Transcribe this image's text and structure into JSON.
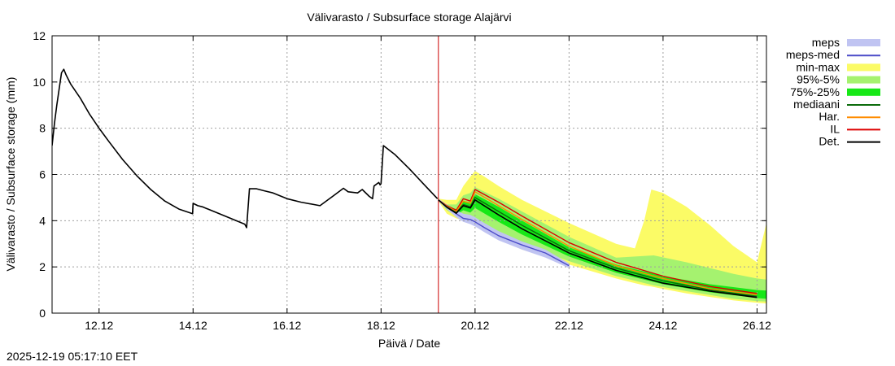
{
  "chart_data": {
    "type": "line",
    "title": "Välivarasto / Subsurface storage  Alajärvi",
    "xlabel": "Päivä / Date",
    "ylabel": "Välivarasto / Subsurface storage (mm)",
    "xlim": [
      0,
      15.2
    ],
    "ylim": [
      0,
      12
    ],
    "x_unit": "days since 10.12 22:00",
    "yticks": [
      0,
      2,
      4,
      6,
      8,
      10,
      12
    ],
    "xticks": [
      {
        "x": 1,
        "label": "12.12"
      },
      {
        "x": 3,
        "label": "14.12"
      },
      {
        "x": 5,
        "label": "16.12"
      },
      {
        "x": 7,
        "label": "18.12"
      },
      {
        "x": 9,
        "label": "20.12"
      },
      {
        "x": 11,
        "label": "22.12"
      },
      {
        "x": 13,
        "label": "24.12"
      },
      {
        "x": 15,
        "label": "26.12"
      }
    ],
    "grid": true,
    "forecast_start_x": 8.22,
    "legend_position": "right",
    "legend": [
      {
        "label": "meps",
        "kind": "band",
        "color": "#c0c4f2"
      },
      {
        "label": "meps-med",
        "kind": "line",
        "color": "#4b4bc8"
      },
      {
        "label": "min-max",
        "kind": "band",
        "color": "#fbfb66"
      },
      {
        "label": "95%-5%",
        "kind": "band",
        "color": "#a5f26f"
      },
      {
        "label": "75%-25%",
        "kind": "band",
        "color": "#17e817"
      },
      {
        "label": "mediaani",
        "kind": "line",
        "color": "#0b6b0b"
      },
      {
        "label": "Har.",
        "kind": "line",
        "color": "#ff8c00"
      },
      {
        "label": "IL",
        "kind": "line",
        "color": "#dd0000"
      },
      {
        "label": "Det.",
        "kind": "line",
        "color": "#000000"
      }
    ],
    "series": [
      {
        "name": "history",
        "color": "#000000",
        "x": [
          0,
          0.05,
          0.1,
          0.15,
          0.2,
          0.25,
          0.3,
          0.4,
          0.6,
          0.8,
          1.0,
          1.2,
          1.5,
          1.8,
          2.1,
          2.4,
          2.7,
          2.99,
          3.0,
          3.1,
          3.2,
          3.5,
          3.8,
          4.1,
          4.14,
          4.2,
          4.35,
          4.5,
          4.7,
          5.0,
          5.3,
          5.7,
          6.0,
          6.2,
          6.3,
          6.5,
          6.6,
          6.75,
          6.82,
          6.85,
          6.95,
          6.98,
          7.0,
          7.05,
          7.3,
          7.6,
          7.9,
          8.2
        ],
        "values": [
          7.25,
          8.2,
          9.0,
          9.7,
          10.4,
          10.55,
          10.3,
          9.9,
          9.3,
          8.6,
          8.0,
          7.45,
          6.65,
          5.95,
          5.35,
          4.85,
          4.5,
          4.3,
          4.75,
          4.65,
          4.6,
          4.35,
          4.1,
          3.85,
          3.7,
          5.38,
          5.38,
          5.3,
          5.2,
          4.95,
          4.8,
          4.65,
          5.1,
          5.4,
          5.25,
          5.2,
          5.35,
          5.05,
          4.95,
          5.5,
          5.65,
          5.55,
          5.6,
          7.25,
          6.85,
          6.25,
          5.6,
          4.95
        ]
      },
      {
        "name": "meps-med",
        "color": "#4b4bc8",
        "x": [
          8.22,
          8.4,
          8.6,
          8.75,
          8.9,
          9.0,
          9.2,
          9.5,
          10.0,
          10.5,
          11.0
        ],
        "values": [
          4.9,
          4.6,
          4.3,
          4.1,
          4.05,
          3.95,
          3.7,
          3.35,
          2.95,
          2.6,
          2.05
        ]
      },
      {
        "name": "IL",
        "color": "#dd0000",
        "x": [
          8.22,
          8.4,
          8.6,
          8.75,
          8.9,
          9.0,
          9.5,
          10.0,
          11.0,
          12.0,
          13.0,
          14.0,
          15.0
        ],
        "values": [
          4.9,
          4.65,
          4.45,
          4.95,
          4.85,
          5.35,
          4.8,
          4.2,
          3.05,
          2.2,
          1.6,
          1.15,
          0.85
        ]
      },
      {
        "name": "Har.",
        "color": "#ff8c00",
        "x": [
          8.22,
          8.4,
          8.6,
          8.75,
          8.9,
          9.0,
          9.5,
          10.0,
          11.0,
          12.0,
          13.0,
          14.0,
          15.0
        ],
        "values": [
          4.9,
          4.62,
          4.4,
          4.85,
          4.75,
          5.25,
          4.65,
          4.05,
          2.9,
          2.05,
          1.5,
          1.05,
          0.8
        ]
      },
      {
        "name": "mediaani",
        "color": "#0b6b0b",
        "x": [
          8.22,
          8.4,
          8.6,
          8.75,
          8.9,
          9.0,
          9.5,
          10.0,
          11.0,
          12.0,
          13.0,
          14.0,
          15.0
        ],
        "values": [
          4.9,
          4.6,
          4.35,
          4.7,
          4.6,
          5.0,
          4.4,
          3.8,
          2.7,
          1.95,
          1.4,
          1.0,
          0.72
        ]
      },
      {
        "name": "Det.",
        "color": "#000000",
        "x": [
          8.22,
          8.4,
          8.6,
          8.75,
          8.9,
          9.0,
          9.5,
          10.0,
          11.0,
          12.0,
          13.0,
          14.0,
          15.0
        ],
        "values": [
          4.9,
          4.58,
          4.32,
          4.65,
          4.55,
          4.9,
          4.25,
          3.65,
          2.6,
          1.85,
          1.3,
          0.95,
          0.68
        ]
      }
    ],
    "bands": [
      {
        "name": "min-max",
        "color": "#fbfb66",
        "x": [
          8.22,
          8.4,
          8.6,
          8.75,
          8.9,
          9.0,
          9.2,
          9.5,
          10.0,
          11.0,
          12.0,
          12.4,
          12.6,
          12.75,
          13.0,
          13.5,
          14.0,
          14.5,
          15.0,
          15.2
        ],
        "upper": [
          4.95,
          4.9,
          4.9,
          5.5,
          5.9,
          6.15,
          5.9,
          5.5,
          4.9,
          3.9,
          3.0,
          2.8,
          4.0,
          5.35,
          5.2,
          4.6,
          3.8,
          2.9,
          2.2,
          3.9
        ],
        "lower": [
          4.85,
          4.3,
          4.1,
          4.0,
          3.9,
          3.8,
          3.6,
          3.2,
          2.75,
          2.1,
          1.5,
          1.3,
          1.2,
          1.15,
          1.05,
          0.85,
          0.7,
          0.55,
          0.45,
          0.42
        ]
      },
      {
        "name": "95%-5%",
        "color": "#a5f26f",
        "x": [
          8.22,
          8.4,
          8.6,
          8.75,
          8.9,
          9.0,
          9.5,
          10.0,
          11.0,
          12.0,
          12.8,
          13.5,
          14.0,
          14.5,
          15.0,
          15.2
        ],
        "upper": [
          4.92,
          4.7,
          4.7,
          5.1,
          5.2,
          5.45,
          4.95,
          4.4,
          3.3,
          2.4,
          2.5,
          2.2,
          1.95,
          1.7,
          1.5,
          1.45
        ],
        "lower": [
          4.88,
          4.45,
          4.2,
          4.15,
          4.05,
          3.9,
          3.45,
          3.0,
          2.25,
          1.6,
          1.2,
          0.95,
          0.78,
          0.62,
          0.52,
          0.5
        ]
      },
      {
        "name": "75%-25%",
        "color": "#17e817",
        "x": [
          8.22,
          8.4,
          8.6,
          8.75,
          8.9,
          9.0,
          9.5,
          10.0,
          11.0,
          12.0,
          13.0,
          14.0,
          15.0,
          15.2
        ],
        "upper": [
          4.9,
          4.63,
          4.5,
          4.85,
          4.8,
          5.15,
          4.6,
          4.0,
          2.85,
          2.1,
          1.6,
          1.25,
          1.0,
          0.98
        ],
        "lower": [
          4.9,
          4.52,
          4.25,
          4.45,
          4.35,
          4.55,
          3.95,
          3.4,
          2.45,
          1.75,
          1.25,
          0.9,
          0.65,
          0.62
        ]
      },
      {
        "name": "meps",
        "color": "#c0c4f2",
        "x": [
          8.22,
          8.4,
          8.6,
          8.75,
          8.9,
          9.0,
          9.2,
          9.5,
          10.0,
          10.5,
          11.0
        ],
        "upper": [
          4.95,
          4.7,
          4.45,
          4.3,
          4.25,
          4.15,
          3.9,
          3.55,
          3.1,
          2.75,
          2.15
        ],
        "lower": [
          4.85,
          4.5,
          4.15,
          3.95,
          3.85,
          3.75,
          3.5,
          3.15,
          2.75,
          2.4,
          1.95
        ]
      }
    ]
  },
  "timestamp": "2025-12-19 05:17:10 EET"
}
